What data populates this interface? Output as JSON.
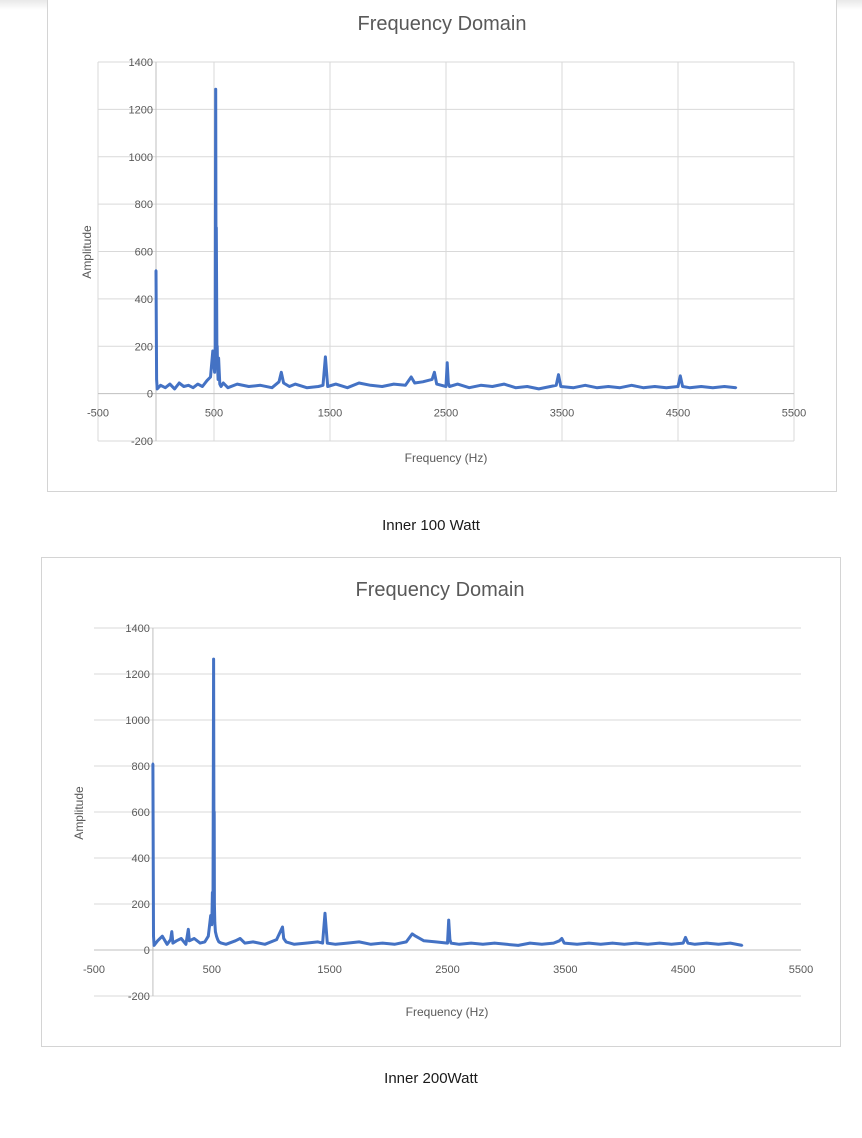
{
  "figure_captions": [
    "Inner 100 Watt",
    "Inner 200Watt"
  ],
  "colors": {
    "series": "#4472c4",
    "grid": "#d9d9d9",
    "axis": "#bfbfbf",
    "text": "#595959"
  },
  "chart_data": [
    {
      "type": "line",
      "title": "Frequency Domain",
      "xlabel": "Frequency (Hz)",
      "ylabel": "Amplitude",
      "xlim": [
        -500,
        5500
      ],
      "ylim": [
        -200,
        1400
      ],
      "x_ticks": [
        -500,
        500,
        1500,
        2500,
        3500,
        4500,
        5500
      ],
      "y_ticks": [
        -200,
        0,
        200,
        400,
        600,
        800,
        1000,
        1200,
        1400
      ],
      "grid": {
        "vertical": true,
        "horizontal": true
      },
      "legend": "none",
      "series": [
        {
          "values_note_free": true,
          "x": [
            0,
            5,
            10,
            40,
            80,
            120,
            160,
            200,
            240,
            280,
            320,
            360,
            400,
            440,
            470,
            490,
            500,
            505,
            510,
            515,
            518,
            520,
            522,
            525,
            528,
            530,
            535,
            540,
            550,
            560,
            580,
            620,
            700,
            800,
            900,
            1000,
            1060,
            1080,
            1100,
            1150,
            1200,
            1300,
            1400,
            1440,
            1460,
            1480,
            1550,
            1650,
            1750,
            1850,
            1950,
            2050,
            2150,
            2200,
            2230,
            2300,
            2380,
            2400,
            2420,
            2500,
            2510,
            2520,
            2530,
            2600,
            2700,
            2800,
            2900,
            3000,
            3100,
            3200,
            3300,
            3400,
            3450,
            3470,
            3490,
            3600,
            3700,
            3800,
            3900,
            4000,
            4100,
            4200,
            4300,
            4400,
            4500,
            4520,
            4540,
            4600,
            4700,
            4800,
            4900,
            5000
          ],
          "y": [
            520,
            60,
            20,
            35,
            25,
            40,
            20,
            45,
            30,
            35,
            25,
            40,
            30,
            55,
            70,
            180,
            120,
            90,
            200,
            1285,
            300,
            700,
            450,
            160,
            200,
            120,
            60,
            150,
            40,
            30,
            45,
            25,
            40,
            30,
            35,
            25,
            50,
            90,
            45,
            30,
            40,
            25,
            30,
            35,
            155,
            30,
            40,
            25,
            45,
            35,
            30,
            40,
            35,
            70,
            45,
            50,
            60,
            90,
            40,
            30,
            130,
            45,
            30,
            40,
            25,
            35,
            30,
            40,
            25,
            30,
            20,
            30,
            35,
            80,
            30,
            25,
            35,
            25,
            30,
            25,
            35,
            25,
            30,
            25,
            30,
            75,
            30,
            25,
            30,
            25,
            30,
            25
          ]
        }
      ]
    },
    {
      "type": "line",
      "title": "Frequency Domain",
      "xlabel": "Frequency (Hz)",
      "ylabel": "Amplitude",
      "xlim": [
        -500,
        5500
      ],
      "ylim": [
        -200,
        1400
      ],
      "x_ticks": [
        -500,
        500,
        1500,
        2500,
        3500,
        4500,
        5500
      ],
      "y_ticks": [
        -200,
        0,
        200,
        400,
        600,
        800,
        1000,
        1200,
        1400
      ],
      "grid": {
        "vertical": false,
        "horizontal": true
      },
      "legend": "none",
      "series": [
        {
          "x": [
            0,
            5,
            10,
            40,
            80,
            120,
            150,
            160,
            170,
            200,
            240,
            280,
            300,
            310,
            350,
            400,
            440,
            470,
            490,
            500,
            505,
            510,
            515,
            518,
            520,
            522,
            525,
            530,
            540,
            550,
            560,
            580,
            620,
            700,
            740,
            780,
            850,
            950,
            1050,
            1100,
            1110,
            1130,
            1200,
            1300,
            1400,
            1440,
            1460,
            1480,
            1550,
            1650,
            1750,
            1850,
            1950,
            2050,
            2150,
            2200,
            2230,
            2300,
            2400,
            2500,
            2510,
            2520,
            2530,
            2600,
            2700,
            2800,
            2900,
            3000,
            3100,
            3200,
            3300,
            3400,
            3450,
            3470,
            3490,
            3600,
            3700,
            3800,
            3900,
            4000,
            4100,
            4200,
            4300,
            4400,
            4500,
            4520,
            4540,
            4600,
            4700,
            4800,
            4900,
            5000
          ],
          "y": [
            810,
            60,
            20,
            40,
            60,
            25,
            45,
            80,
            30,
            40,
            50,
            25,
            90,
            40,
            50,
            30,
            35,
            60,
            150,
            110,
            250,
            180,
            1265,
            350,
            600,
            200,
            120,
            80,
            60,
            45,
            35,
            30,
            25,
            40,
            50,
            30,
            35,
            25,
            45,
            100,
            50,
            35,
            25,
            30,
            35,
            30,
            160,
            30,
            25,
            30,
            35,
            25,
            30,
            25,
            35,
            70,
            60,
            40,
            35,
            30,
            130,
            45,
            30,
            25,
            30,
            25,
            30,
            25,
            20,
            30,
            25,
            30,
            40,
            50,
            30,
            25,
            30,
            25,
            30,
            25,
            30,
            25,
            30,
            25,
            30,
            55,
            30,
            25,
            30,
            25,
            30,
            20
          ]
        }
      ]
    }
  ]
}
